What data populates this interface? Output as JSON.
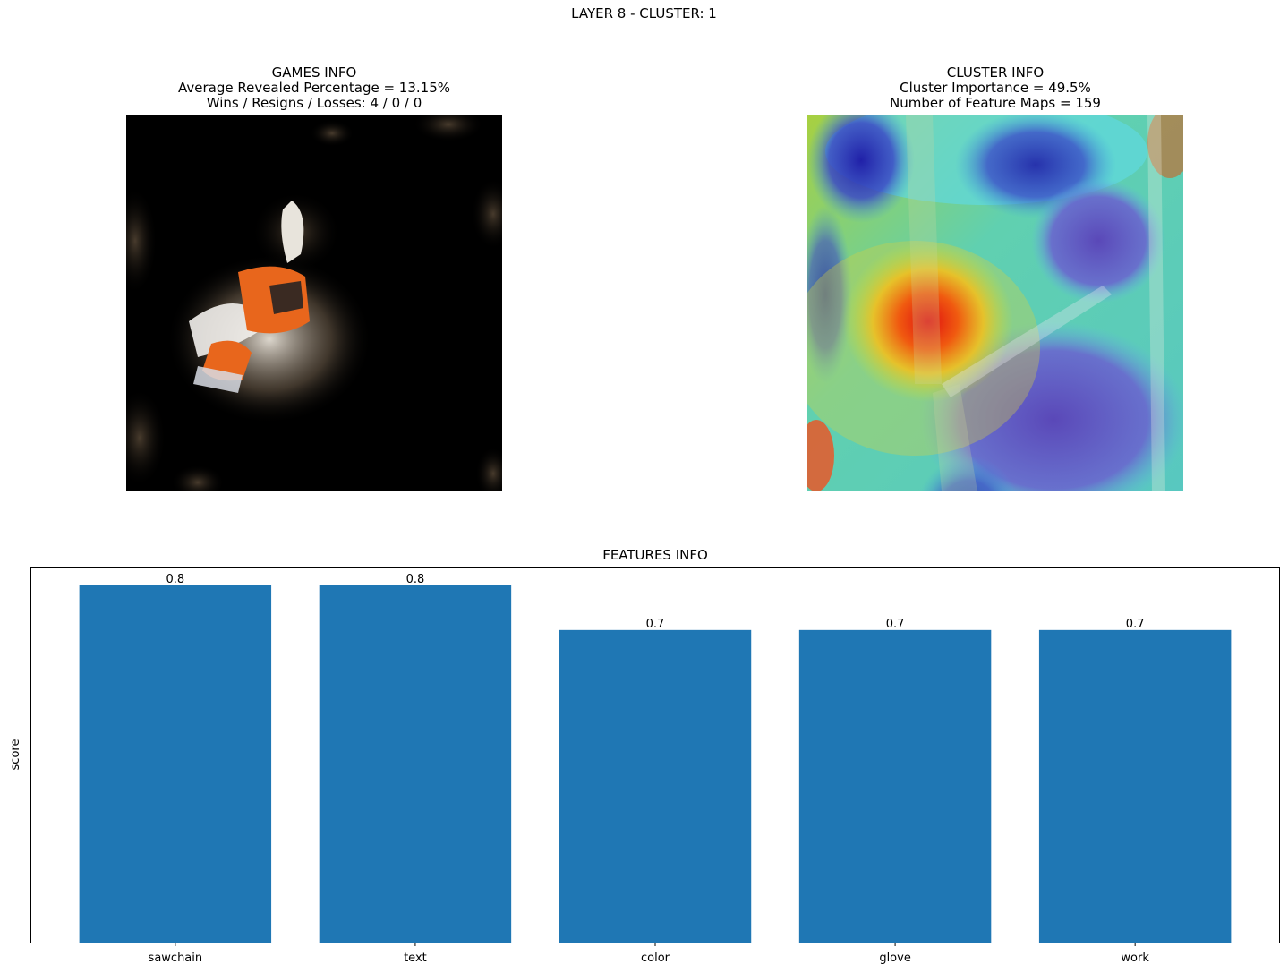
{
  "figure": {
    "suptitle": "LAYER 8 - CLUSTER: 1"
  },
  "games_info": {
    "title": "GAMES INFO",
    "line1": "Average Revealed Percentage = 13.15%",
    "line2": "Wins / Resigns / Losses: 4 / 0 / 0"
  },
  "cluster_info": {
    "title": "CLUSTER INFO",
    "line1": "Cluster Importance = 49.5%",
    "line2": "Number of Feature Maps = 159"
  },
  "chart_data": {
    "type": "bar",
    "title": "FEATURES INFO",
    "xlabel": "",
    "ylabel": "score",
    "categories": [
      "sawchain",
      "text",
      "color",
      "glove",
      "work"
    ],
    "values": [
      0.8,
      0.8,
      0.7,
      0.7,
      0.7
    ],
    "bar_labels": [
      "0.8",
      "0.8",
      "0.7",
      "0.7",
      "0.7"
    ],
    "ylim": [
      0,
      0.84
    ],
    "bar_color": "#1f77b4",
    "grid": false,
    "y_ticks_visible": false
  }
}
